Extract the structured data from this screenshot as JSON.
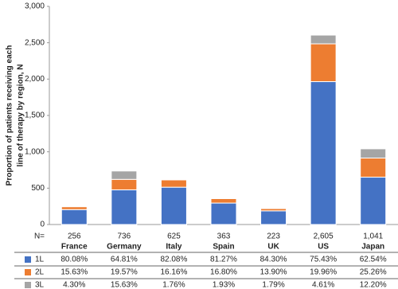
{
  "chart_data": {
    "type": "stacked_bar",
    "y_label": [
      "Proportion of patients receiving each",
      "line of therapy by region, N"
    ],
    "categories": [
      "France",
      "Germany",
      "Italy",
      "Spain",
      "UK",
      "US",
      "Japan"
    ],
    "series": [
      {
        "name": "1L",
        "color": "#4472c4",
        "values": [
          205,
          477,
          513,
          295,
          188,
          1965,
          651
        ]
      },
      {
        "name": "2L",
        "color": "#ed7d31",
        "values": [
          40,
          144,
          101,
          61,
          31,
          520,
          263
        ]
      },
      {
        "name": "3L",
        "color": "#a5a5a5",
        "values": [
          11,
          115,
          11,
          7,
          4,
          120,
          127
        ]
      }
    ],
    "ylim": [
      0,
      3000
    ],
    "yticks": [
      0,
      500,
      {
        "value": 1000,
        "label": "1,000"
      },
      {
        "value": 1500,
        "label": "1,500"
      },
      {
        "value": 2000,
        "label": "2,000"
      },
      {
        "value": 2500,
        "label": "2,500"
      },
      {
        "value": 3000,
        "label": "3,000"
      }
    ],
    "table": {
      "n_label": "N=",
      "n": [
        "256",
        "736",
        "625",
        "363",
        "223",
        "2,605",
        "1,041"
      ],
      "rows": [
        [
          "80.08%",
          "64.81%",
          "82.08%",
          "81.27%",
          "84.30%",
          "75.43%",
          "62.54%"
        ],
        [
          "15.63%",
          "19.57%",
          "16.16%",
          "16.80%",
          "13.90%",
          "19.96%",
          "25.26%"
        ],
        [
          "4.30%",
          "15.63%",
          "1.76%",
          "1.93%",
          "1.79%",
          "4.61%",
          "12.20%"
        ]
      ]
    }
  }
}
